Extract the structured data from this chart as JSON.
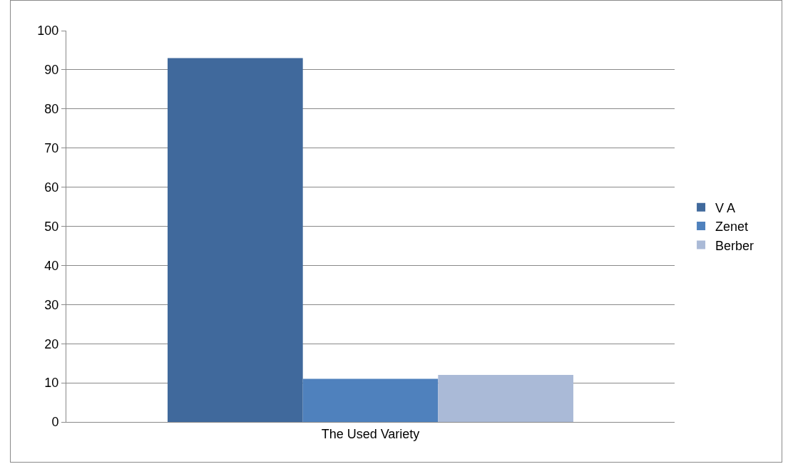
{
  "chart_data": {
    "type": "bar",
    "categories": [
      "The Used Variety"
    ],
    "series": [
      {
        "name": "V A",
        "color": "#40699c",
        "values": [
          93
        ]
      },
      {
        "name": "Zenet",
        "color": "#4f81bd",
        "values": [
          11
        ]
      },
      {
        "name": "Berber",
        "color": "#aabad7",
        "values": [
          12
        ]
      }
    ],
    "ylim": [
      0,
      100
    ],
    "yticks": [
      0,
      10,
      20,
      30,
      40,
      50,
      60,
      70,
      80,
      90,
      100
    ],
    "grid": "y",
    "legend": "right"
  }
}
